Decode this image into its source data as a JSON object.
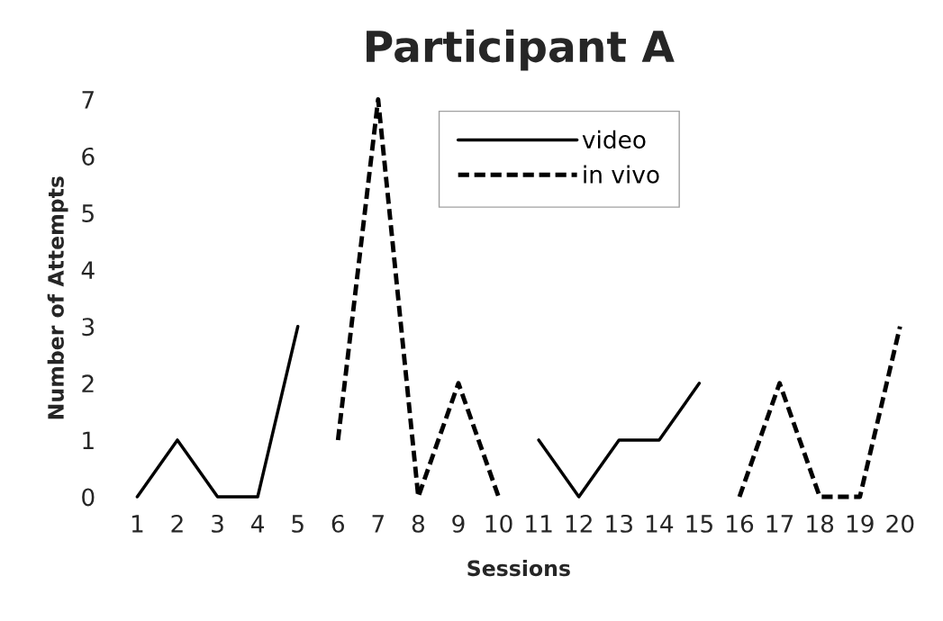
{
  "chart_data": {
    "type": "line",
    "title": "Participant A",
    "xlabel": "Sessions",
    "ylabel": "Number of Attempts",
    "categories": [
      "1",
      "2",
      "3",
      "4",
      "5",
      "6",
      "7",
      "8",
      "9",
      "10",
      "11",
      "12",
      "13",
      "14",
      "15",
      "16",
      "17",
      "18",
      "19",
      "20"
    ],
    "series": [
      {
        "name": "video",
        "color": "#000000",
        "line_style": "solid",
        "values": [
          0,
          1,
          0,
          0,
          3,
          null,
          null,
          null,
          null,
          null,
          1,
          0,
          1,
          1,
          2,
          null,
          null,
          null,
          null,
          null
        ]
      },
      {
        "name": "in vivo",
        "color": "#000000",
        "line_style": "dashed",
        "values": [
          null,
          null,
          null,
          null,
          null,
          1,
          7,
          0,
          2,
          0,
          null,
          null,
          null,
          null,
          null,
          0,
          2,
          0,
          0,
          3
        ]
      }
    ],
    "ylim": [
      0,
      7
    ],
    "yticks": [
      0,
      1,
      2,
      3,
      4,
      5,
      6,
      7
    ],
    "grid": false,
    "legend": "top",
    "marker": "none"
  }
}
